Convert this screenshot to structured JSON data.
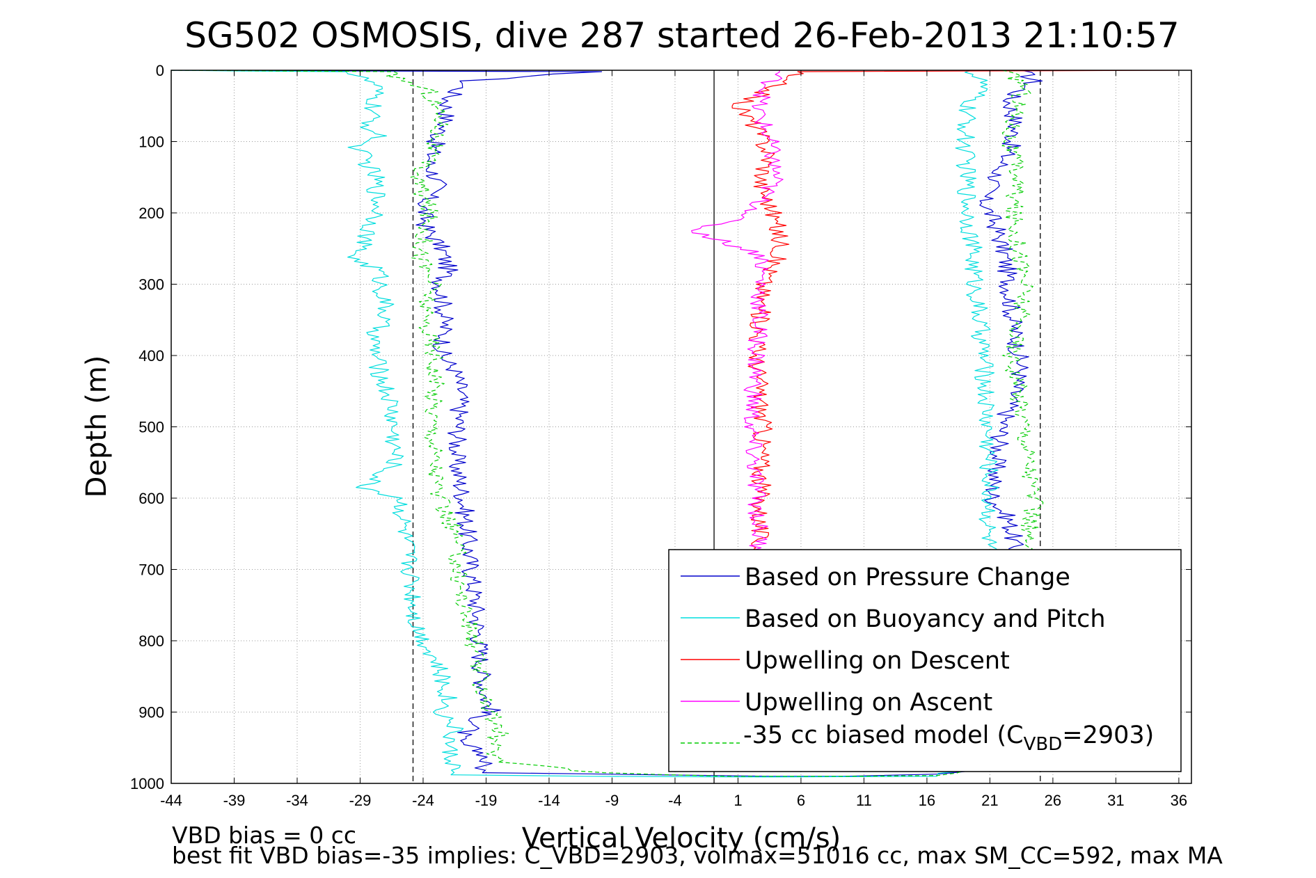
{
  "chart_data": {
    "type": "line",
    "title": "SG502 OSMOSIS, dive 287 started 26-Feb-2013 21:10:57",
    "xlabel": "Vertical Velocity (cm/s)",
    "ylabel": "Depth (m)",
    "xlim": [
      -44,
      37
    ],
    "ylim": [
      0,
      1000
    ],
    "y_reversed": true,
    "grid": true,
    "x_ticks": [
      -44,
      -39,
      -34,
      -29,
      -24,
      -19,
      -14,
      -9,
      -4,
      1,
      6,
      11,
      16,
      21,
      26,
      31,
      36
    ],
    "y_ticks": [
      0,
      100,
      200,
      300,
      400,
      500,
      600,
      700,
      800,
      900,
      1000
    ],
    "reference_lines": {
      "solid_x": -0.9,
      "dashed_x": [
        -24.8,
        25.0
      ]
    },
    "legend_position": "bottom-right",
    "legend": {
      "entries": [
        "Based on Pressure Change",
        "Based on Buoyancy and Pitch",
        "Upwelling on Descent",
        "Upwelling on Ascent"
      ],
      "model_prefix": "-35 cc biased model (C",
      "model_sub": "VBD",
      "model_suffix": "=2903)"
    },
    "footer_lines": [
      "VBD bias = 0 cc",
      "best fit VBD bias=-35 implies: C_VBD=2903, volmax=51016 cc, max SM_CC=592, max MA"
    ],
    "series": [
      {
        "name": "Based on Pressure Change",
        "color": "#0000cc",
        "segments": [
          {
            "x": [
              -44.0,
              -30,
              -10.5,
              -20.5,
              -22.0,
              -22.2,
              -23.0,
              -23.5,
              -22.8,
              -24.0,
              -23.8,
              -22.5,
              -22.0,
              -22.6,
              -22.4,
              -22.3,
              -22.5,
              -21.5,
              -21.0,
              -21.2,
              -21.4,
              -20.8,
              -20.5,
              -20.2,
              -19.8,
              -19.5,
              -19.3,
              -19.0,
              -18.5,
              -19.2,
              -20.0,
              -21.5,
              -19.0,
              -19.2,
              -19.3
            ],
            "y": [
              0,
              1,
              2,
              15,
              40,
              70,
              100,
              130,
              160,
              190,
              220,
              250,
              280,
              300,
              330,
              360,
              400,
              420,
              450,
              500,
              550,
              600,
              650,
              700,
              750,
              800,
              850,
              880,
              900,
              900,
              920,
              940,
              960,
              975,
              985
            ]
          },
          {
            "x": [
              -19.3,
              -10,
              3,
              10,
              16.8
            ],
            "y": [
              985,
              987,
              990,
              990,
              987
            ]
          },
          {
            "x": [
              16.8,
              17.5,
              18.5,
              19.3,
              19.5
            ],
            "y": [
              987,
              985,
              983,
              982,
              982
            ]
          },
          {
            "x": [
              23.5,
              24.5,
              22.5,
              23.0,
              22.8,
              21.5,
              20.5,
              21.5,
              22.2,
              22.5,
              22.8,
              23.5,
              22.0,
              21.5,
              21.2,
              22.5,
              22.8,
              23.0
            ],
            "y": [
              0,
              15,
              40,
              70,
              100,
              150,
              180,
              220,
              260,
              300,
              350,
              420,
              500,
              550,
              600,
              630,
              650,
              680
            ]
          }
        ]
      },
      {
        "name": "Based on Buoyancy and Pitch",
        "color": "#00dddd",
        "segments": [
          {
            "x": [
              -44.0,
              -38,
              -30,
              -27.8,
              -28.0,
              -28.3,
              -27.5,
              -29.3,
              -27.8,
              -27.5,
              -29.5,
              -27.5,
              -27.0,
              -28.0,
              -27.5,
              -26.5,
              -26.2,
              -28.7,
              -25.8,
              -25.5,
              -25.0,
              -24.5,
              -23.0,
              -22.0,
              -22.5,
              -21.5,
              -22.0,
              -21.5,
              -21.8
            ],
            "y": [
              0,
              1,
              2,
              20,
              50,
              80,
              95,
              105,
              150,
              200,
              265,
              280,
              340,
              380,
              420,
              470,
              550,
              585,
              600,
              650,
              700,
              780,
              830,
              880,
              900,
              920,
              950,
              975,
              988
            ]
          },
          {
            "x": [
              -21.8,
              -10,
              3,
              16.8
            ],
            "y": [
              988,
              990,
              991,
              990
            ]
          },
          {
            "x": [
              16.8,
              17.5,
              18.5,
              19.3,
              19.5
            ],
            "y": [
              990,
              986,
              983,
              982,
              982
            ]
          },
          {
            "x": [
              19.5,
              20.5,
              19.2,
              19.0,
              19.3,
              19.5,
              19.8,
              20.5,
              20.8,
              21.0,
              20.8,
              21.0
            ],
            "y": [
              0,
              20,
              50,
              100,
              200,
              230,
              300,
              400,
              500,
              600,
              650,
              680
            ]
          }
        ]
      },
      {
        "name": "Upwelling on Descent",
        "color": "#ff0000",
        "segments": [
          {
            "x": [
              36.0,
              6.0,
              4.5,
              3.8,
              2.0,
              1.0,
              2.5,
              3.5,
              2.8,
              3.8,
              4.5,
              3.0,
              2.5,
              3.0,
              2.8,
              2.6
            ],
            "y": [
              0,
              2,
              10,
              25,
              40,
              50,
              80,
              120,
              160,
              200,
              250,
              300,
              400,
              500,
              600,
              700
            ]
          }
        ]
      },
      {
        "name": "Upwelling on Ascent",
        "color": "#ff00ff",
        "segments": [
          {
            "x": [
              4.3,
              3.5,
              2.5,
              3.5,
              4.0,
              2.2,
              -2.5,
              3.0,
              2.8,
              2.5,
              2.0,
              2.5,
              2.8
            ],
            "y": [
              0,
              20,
              50,
              100,
              150,
              200,
              225,
              260,
              300,
              400,
              500,
              600,
              700
            ]
          }
        ]
      },
      {
        "name": "-35 cc biased model (CVBD=2903)",
        "color": "#00cc00",
        "dashed": true,
        "segments": [
          {
            "x": [
              -44.0,
              -35,
              -27.0,
              -23.5,
              -22.5,
              -23.0,
              -24.5,
              -23.5,
              -24.2,
              -23.2,
              -24.0,
              -23.0,
              -23.2,
              -22.8,
              -21.5,
              -21.2,
              -20.8,
              -20.0,
              -19.5,
              -19.0,
              -18.5,
              -18.0,
              -18.5,
              -18.0
            ],
            "y": [
              0,
              1,
              2,
              30,
              70,
              100,
              150,
              200,
              260,
              300,
              340,
              400,
              500,
              600,
              650,
              700,
              750,
              800,
              850,
              880,
              910,
              930,
              950,
              970
            ]
          },
          {
            "x": [
              -18.0,
              -10,
              0,
              10,
              16.8,
              19.0
            ],
            "y": [
              970,
              985,
              990,
              990,
              989,
              982
            ]
          },
          {
            "x": [
              22.0,
              23.8,
              23.0,
              22.5,
              23.2,
              22.8,
              23.8,
              22.8,
              23.8,
              24.5,
              24.0,
              23.5
            ],
            "y": [
              0,
              20,
              60,
              100,
              150,
              200,
              300,
              400,
              500,
              600,
              650,
              680
            ]
          }
        ]
      }
    ]
  }
}
